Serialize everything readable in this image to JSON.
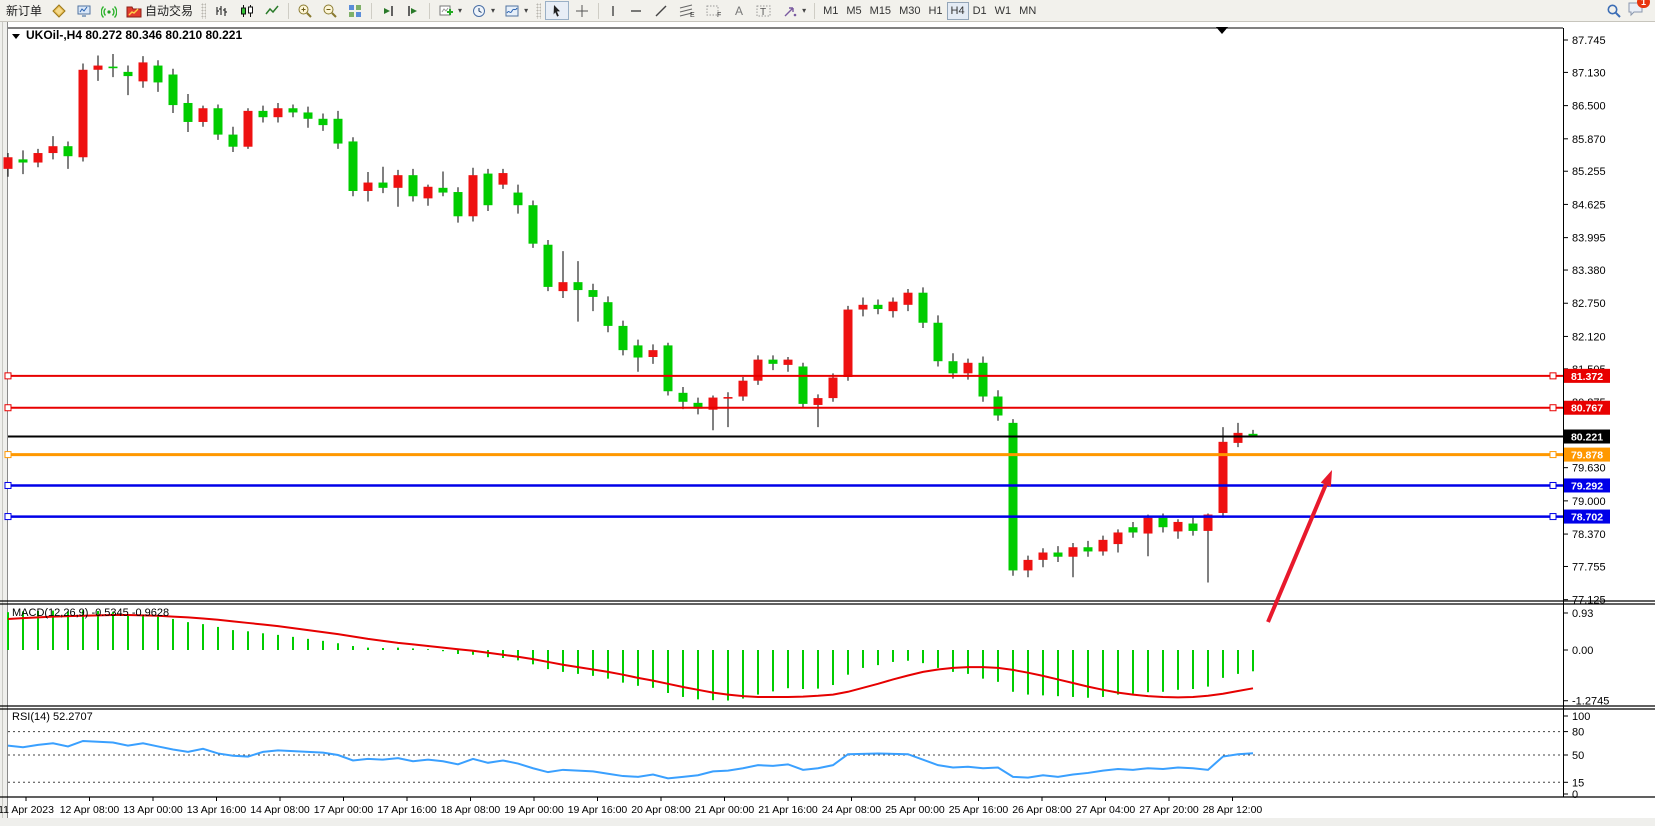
{
  "toolbar": {
    "new_order_label": "新订单",
    "autotrade_label": "自动交易",
    "timeframes": [
      "M1",
      "M5",
      "M15",
      "M30",
      "H1",
      "H4",
      "D1",
      "W1",
      "MN"
    ],
    "active_timeframe": "H4",
    "chat_badge": "1",
    "icon_names": [
      "new-order-ticket-icon",
      "market-watch-icon",
      "signal-icon",
      "autotrade-icon",
      "bar-chart-icon",
      "candlestick-chart-icon",
      "line-chart-icon",
      "zoom-in-icon",
      "zoom-out-icon",
      "tile-windows-icon",
      "shift-end-icon",
      "auto-scroll-icon",
      "new-chart-icon",
      "period-clock-icon",
      "template-icon",
      "cursor-icon",
      "crosshair-icon",
      "vertical-line-icon",
      "horizontal-line-icon",
      "trendline-icon",
      "fibonacci-icon",
      "equidistant-channel-icon",
      "text-icon",
      "text-label-icon",
      "arrows-icon",
      "search-icon",
      "chat-icon"
    ]
  },
  "chart": {
    "symbol_header": "UKOil-,H4  80.272 80.346 80.210 80.221",
    "macd_label": "MACD(12,26,9) -0.5345 -0.9628",
    "rsi_label": "RSI(14) 52.2707",
    "last_close": "80.221"
  },
  "chart_data": {
    "type": "candlestick",
    "title": "UKOil-,H4",
    "ohlc_display": {
      "open": "80.272",
      "high": "80.346",
      "low": "80.210",
      "close": "80.221"
    },
    "ylim": [
      77.1,
      87.97
    ],
    "price_axis_ticks": [
      "87.745",
      "87.130",
      "86.500",
      "85.870",
      "85.255",
      "84.625",
      "83.995",
      "83.380",
      "82.750",
      "82.120",
      "81.505",
      "80.875",
      "79.630",
      "79.000",
      "78.370",
      "77.755",
      "77.125"
    ],
    "time_labels": [
      "11 Apr 2023",
      "12 Apr 08:00",
      "13 Apr 00:00",
      "13 Apr 16:00",
      "14 Apr 08:00",
      "17 Apr 00:00",
      "17 Apr 16:00",
      "18 Apr 08:00",
      "19 Apr 00:00",
      "19 Apr 16:00",
      "20 Apr 08:00",
      "21 Apr 00:00",
      "21 Apr 16:00",
      "24 Apr 08:00",
      "25 Apr 00:00",
      "25 Apr 16:00",
      "26 Apr 08:00",
      "27 Apr 04:00",
      "27 Apr 20:00",
      "28 Apr 12:00"
    ],
    "up_color": "#ee1111",
    "down_color": "#00cc00",
    "candles": [
      [
        85.3,
        85.6,
        85.15,
        85.52
      ],
      [
        85.48,
        85.65,
        85.2,
        85.42
      ],
      [
        85.42,
        85.68,
        85.33,
        85.6
      ],
      [
        85.6,
        85.92,
        85.48,
        85.73
      ],
      [
        85.73,
        85.82,
        85.3,
        85.54
      ],
      [
        85.52,
        87.3,
        85.44,
        87.18
      ],
      [
        87.18,
        87.45,
        86.97,
        87.26
      ],
      [
        87.24,
        87.48,
        87.04,
        87.22
      ],
      [
        87.14,
        87.26,
        86.7,
        87.06
      ],
      [
        86.96,
        87.44,
        86.84,
        87.32
      ],
      [
        87.26,
        87.36,
        86.76,
        86.94
      ],
      [
        87.09,
        87.2,
        86.36,
        86.51
      ],
      [
        86.55,
        86.72,
        86.0,
        86.19
      ],
      [
        86.19,
        86.5,
        86.1,
        86.45
      ],
      [
        86.45,
        86.52,
        85.85,
        85.95
      ],
      [
        85.95,
        86.1,
        85.62,
        85.72
      ],
      [
        85.72,
        86.45,
        85.68,
        86.4
      ],
      [
        86.4,
        86.5,
        86.18,
        86.28
      ],
      [
        86.28,
        86.55,
        86.18,
        86.45
      ],
      [
        86.45,
        86.52,
        86.28,
        86.37
      ],
      [
        86.37,
        86.48,
        86.08,
        86.25
      ],
      [
        86.25,
        86.35,
        86.02,
        86.13
      ],
      [
        86.25,
        86.4,
        85.68,
        85.78
      ],
      [
        85.82,
        85.9,
        84.78,
        84.88
      ],
      [
        84.88,
        85.24,
        84.68,
        85.04
      ],
      [
        85.04,
        85.34,
        84.84,
        84.94
      ],
      [
        84.94,
        85.28,
        84.58,
        85.18
      ],
      [
        85.18,
        85.3,
        84.68,
        84.78
      ],
      [
        84.74,
        85.0,
        84.6,
        84.96
      ],
      [
        84.94,
        85.25,
        84.78,
        84.85
      ],
      [
        84.86,
        84.95,
        84.28,
        84.4
      ],
      [
        84.4,
        85.32,
        84.3,
        85.18
      ],
      [
        85.21,
        85.3,
        84.5,
        84.61
      ],
      [
        85.0,
        85.3,
        84.92,
        85.22
      ],
      [
        84.85,
        85.0,
        84.45,
        84.61
      ],
      [
        84.61,
        84.7,
        83.8,
        83.88
      ],
      [
        83.86,
        83.95,
        82.98,
        83.06
      ],
      [
        82.98,
        83.74,
        82.85,
        83.15
      ],
      [
        83.15,
        83.55,
        82.4,
        83.0
      ],
      [
        83.0,
        83.12,
        82.6,
        82.87
      ],
      [
        82.77,
        82.88,
        82.2,
        82.32
      ],
      [
        82.32,
        82.42,
        81.76,
        81.86
      ],
      [
        81.95,
        82.06,
        81.45,
        81.72
      ],
      [
        81.73,
        81.97,
        81.6,
        81.86
      ],
      [
        81.95,
        82.0,
        81.0,
        81.08
      ],
      [
        81.05,
        81.16,
        80.74,
        80.88
      ],
      [
        80.86,
        80.96,
        80.64,
        80.75
      ],
      [
        80.73,
        81.0,
        80.34,
        80.96
      ],
      [
        80.95,
        81.06,
        80.4,
        80.97
      ],
      [
        80.98,
        81.35,
        80.9,
        81.28
      ],
      [
        81.28,
        81.76,
        81.2,
        81.68
      ],
      [
        81.68,
        81.76,
        81.48,
        81.6
      ],
      [
        81.58,
        81.73,
        81.45,
        81.68
      ],
      [
        81.55,
        81.62,
        80.78,
        80.84
      ],
      [
        80.82,
        81.02,
        80.4,
        80.95
      ],
      [
        80.95,
        81.42,
        80.88,
        81.34
      ],
      [
        81.35,
        82.7,
        81.28,
        82.63
      ],
      [
        82.63,
        82.86,
        82.5,
        82.72
      ],
      [
        82.72,
        82.82,
        82.54,
        82.64
      ],
      [
        82.6,
        82.86,
        82.48,
        82.78
      ],
      [
        82.72,
        83.02,
        82.6,
        82.95
      ],
      [
        82.95,
        83.05,
        82.28,
        82.38
      ],
      [
        82.38,
        82.52,
        81.55,
        81.65
      ],
      [
        81.65,
        81.8,
        81.32,
        81.42
      ],
      [
        81.42,
        81.7,
        81.3,
        81.62
      ],
      [
        81.62,
        81.74,
        80.88,
        80.98
      ],
      [
        80.98,
        81.1,
        80.52,
        80.62
      ],
      [
        80.48,
        80.55,
        77.58,
        77.68
      ],
      [
        77.68,
        77.96,
        77.55,
        77.88
      ],
      [
        77.88,
        78.1,
        77.74,
        78.02
      ],
      [
        78.02,
        78.14,
        77.84,
        77.94
      ],
      [
        77.94,
        78.2,
        77.55,
        78.12
      ],
      [
        78.12,
        78.24,
        77.94,
        78.04
      ],
      [
        78.04,
        78.34,
        77.96,
        78.26
      ],
      [
        78.18,
        78.46,
        78.02,
        78.4
      ],
      [
        78.5,
        78.6,
        78.3,
        78.4
      ],
      [
        78.38,
        78.74,
        77.95,
        78.68
      ],
      [
        78.68,
        78.76,
        78.4,
        78.5
      ],
      [
        78.42,
        78.65,
        78.28,
        78.6
      ],
      [
        78.57,
        78.68,
        78.34,
        78.43
      ],
      [
        78.43,
        78.76,
        77.45,
        78.74
      ],
      [
        78.77,
        80.4,
        78.68,
        80.12
      ],
      [
        80.1,
        80.48,
        80.02,
        80.29
      ],
      [
        80.272,
        80.346,
        80.21,
        80.221
      ]
    ],
    "h_lines": [
      {
        "label": "81.372",
        "value": 81.372,
        "color": "#e80000",
        "width": 2,
        "handles": true
      },
      {
        "label": "80.767",
        "value": 80.767,
        "color": "#e80000",
        "width": 2,
        "handles": true
      },
      {
        "label": "80.221",
        "value": 80.221,
        "color": "#000000",
        "width": 2,
        "handles": false
      },
      {
        "label": "79.878",
        "value": 79.878,
        "color": "#ff9800",
        "width": 3,
        "handles": true
      },
      {
        "label": "79.292",
        "value": 79.292,
        "color": "#0000e8",
        "width": 2.5,
        "handles": true
      },
      {
        "label": "78.702",
        "value": 78.702,
        "color": "#0000e8",
        "width": 2.5,
        "handles": true
      }
    ],
    "macd": {
      "label": "MACD(12,26,9) -0.5345 -0.9628",
      "ticks": [
        "0.93",
        "0.00",
        "-1.2745"
      ],
      "tick_values": [
        0.93,
        0.0,
        -1.2745
      ],
      "hist_color": "#00cc00",
      "signal_color": "#e60000",
      "histogram": [
        0.95,
        0.97,
        0.98,
        0.99,
        0.97,
        1.0,
        0.98,
        0.95,
        0.9,
        0.88,
        0.84,
        0.78,
        0.7,
        0.65,
        0.58,
        0.5,
        0.47,
        0.42,
        0.38,
        0.33,
        0.28,
        0.23,
        0.17,
        0.1,
        0.06,
        0.05,
        0.06,
        0.04,
        0.02,
        -0.03,
        -0.1,
        -0.12,
        -0.18,
        -0.2,
        -0.26,
        -0.36,
        -0.48,
        -0.55,
        -0.6,
        -0.65,
        -0.72,
        -0.82,
        -0.9,
        -0.95,
        -1.08,
        -1.18,
        -1.24,
        -1.26,
        -1.27,
        -1.22,
        -1.12,
        -1.04,
        -0.96,
        -0.98,
        -0.97,
        -0.88,
        -0.62,
        -0.45,
        -0.38,
        -0.3,
        -0.27,
        -0.33,
        -0.45,
        -0.55,
        -0.6,
        -0.72,
        -0.8,
        -1.05,
        -1.12,
        -1.14,
        -1.16,
        -1.18,
        -1.2,
        -1.18,
        -1.12,
        -1.1,
        -1.06,
        -1.05,
        -1.0,
        -0.98,
        -0.92,
        -0.7,
        -0.6,
        -0.535
      ],
      "signal": [
        0.78,
        0.8,
        0.82,
        0.84,
        0.85,
        0.86,
        0.87,
        0.88,
        0.88,
        0.87,
        0.86,
        0.84,
        0.82,
        0.79,
        0.76,
        0.72,
        0.68,
        0.64,
        0.6,
        0.55,
        0.5,
        0.45,
        0.4,
        0.34,
        0.28,
        0.23,
        0.18,
        0.14,
        0.1,
        0.06,
        0.02,
        -0.02,
        -0.07,
        -0.12,
        -0.17,
        -0.23,
        -0.3,
        -0.37,
        -0.43,
        -0.49,
        -0.55,
        -0.62,
        -0.7,
        -0.77,
        -0.85,
        -0.93,
        -1.0,
        -1.07,
        -1.12,
        -1.16,
        -1.18,
        -1.18,
        -1.18,
        -1.17,
        -1.15,
        -1.12,
        -1.05,
        -0.95,
        -0.85,
        -0.74,
        -0.64,
        -0.55,
        -0.49,
        -0.45,
        -0.43,
        -0.43,
        -0.45,
        -0.5,
        -0.57,
        -0.65,
        -0.74,
        -0.83,
        -0.92,
        -1.0,
        -1.07,
        -1.12,
        -1.16,
        -1.18,
        -1.19,
        -1.18,
        -1.15,
        -1.1,
        -1.03,
        -0.963
      ]
    },
    "rsi": {
      "label": "RSI(14) 52.2707",
      "ticks": [
        "100",
        "80",
        "50",
        "15",
        "0"
      ],
      "tick_values": [
        100,
        80,
        50,
        15,
        0
      ],
      "levels_dashed": [
        80,
        50,
        15
      ],
      "line_color": "#3aa0ff",
      "values": [
        62,
        60,
        63,
        65,
        61,
        68,
        67,
        66,
        62,
        65,
        61,
        57,
        54,
        58,
        52,
        49,
        48,
        54,
        56,
        55,
        54,
        53,
        50,
        43,
        45,
        44,
        46,
        42,
        44,
        42,
        38,
        45,
        40,
        43,
        39,
        33,
        28,
        31,
        30,
        29,
        26,
        23,
        22,
        25,
        20,
        22,
        24,
        29,
        30,
        33,
        37,
        36,
        38,
        31,
        33,
        37,
        51,
        51.5,
        52,
        51.5,
        51,
        44,
        37,
        34,
        35,
        33,
        34,
        22,
        21,
        24,
        22,
        25,
        27,
        30,
        32,
        31,
        33,
        32,
        34,
        33,
        31,
        48,
        51,
        52.27
      ]
    },
    "annotations": [
      {
        "type": "arrow",
        "from": [
          1268,
          600
        ],
        "to": [
          1332,
          448
        ],
        "color": "#e8192c",
        "width": 4
      },
      {
        "type": "marker-triangle",
        "x": 1222,
        "y": 8,
        "color": "#000000"
      }
    ],
    "legend_position": "none",
    "grid": false
  }
}
